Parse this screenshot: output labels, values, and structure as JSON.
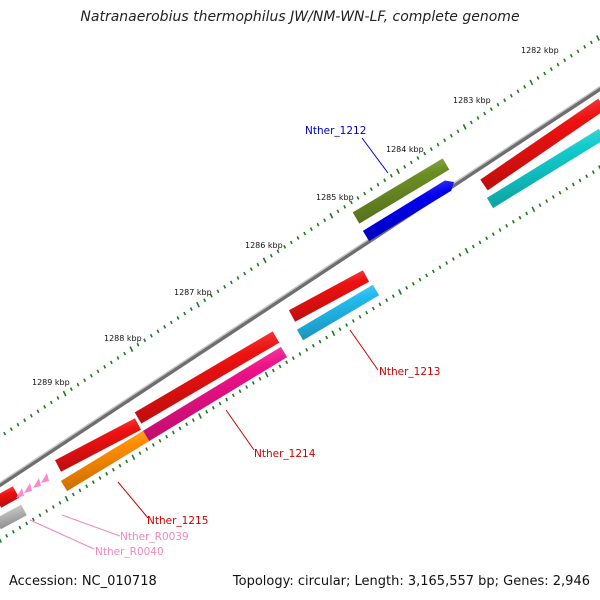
{
  "title": "Natranaerobius thermophilus JW/NM-WN-LF, complete genome",
  "footer": {
    "accession": "Accession: NC_010718",
    "summary": "Topology: circular; Length: 3,165,557 bp; Genes: 2,946"
  },
  "colors": {
    "backbone": "#8a8a8a",
    "tick": "#1e7a1e",
    "cds_forward": "#ee1111",
    "label_red": "#cc0000",
    "label_blue": "#0000cc",
    "label_pink": "#ee88bb"
  },
  "ruler_labels": [
    "1282 kbp",
    "1283 kbp",
    "1284 kbp",
    "1285 kbp",
    "1286 kbp",
    "1287 kbp",
    "1288 kbp",
    "1289 kbp"
  ],
  "genes": [
    {
      "id": "Nther_1212",
      "label": "Nther_1212",
      "label_color": "#0000cc",
      "color": "#6b8e23"
    },
    {
      "id": "Nther_1212b",
      "label": "",
      "label_color": "",
      "color": "#0000ee"
    },
    {
      "id": "Nther_1213",
      "label": "Nther_1213",
      "label_color": "#cc0000",
      "color": "#22bbee"
    },
    {
      "id": "Nther_1214",
      "label": "Nther_1214",
      "label_color": "#cc0000",
      "color": "#ee1188"
    },
    {
      "id": "Nther_1215",
      "label": "Nther_1215",
      "label_color": "#cc0000",
      "color": "#ff8c00"
    },
    {
      "id": "Nther_R0039",
      "label": "Nther_R0039",
      "label_color": "#ee88bb",
      "color": "#ff88cc"
    },
    {
      "id": "Nther_R0040",
      "label": "Nther_R0040",
      "label_color": "#ee88bb",
      "color": "#ff88cc"
    }
  ]
}
